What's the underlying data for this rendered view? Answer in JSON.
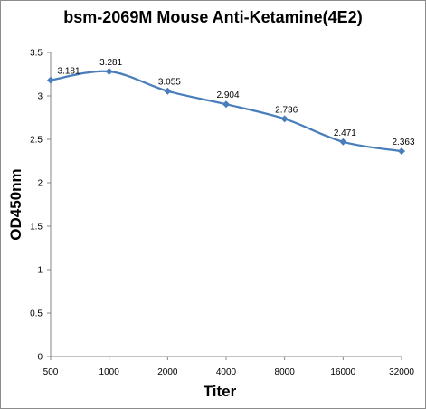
{
  "chart_data": {
    "type": "line",
    "title": "bsm-2069M Mouse Anti-Ketamine(4E2)",
    "xlabel": "Titer",
    "ylabel": "OD450nm",
    "categories": [
      "500",
      "1000",
      "2000",
      "4000",
      "8000",
      "16000",
      "32000"
    ],
    "series": [
      {
        "values": [
          3.181,
          3.281,
          3.055,
          2.904,
          2.736,
          2.471,
          2.363
        ]
      }
    ],
    "data_labels": [
      "3.181",
      "3.281",
      "3.055",
      "2.904",
      "2.736",
      "2.471",
      "2.363"
    ],
    "ylim": [
      0,
      3.5
    ],
    "yticks": [
      "0",
      "0.5",
      "1",
      "1.5",
      "2",
      "2.5",
      "3",
      "3.5"
    ],
    "grid": false,
    "line_color": "#4a7ebb",
    "smooth": true
  }
}
